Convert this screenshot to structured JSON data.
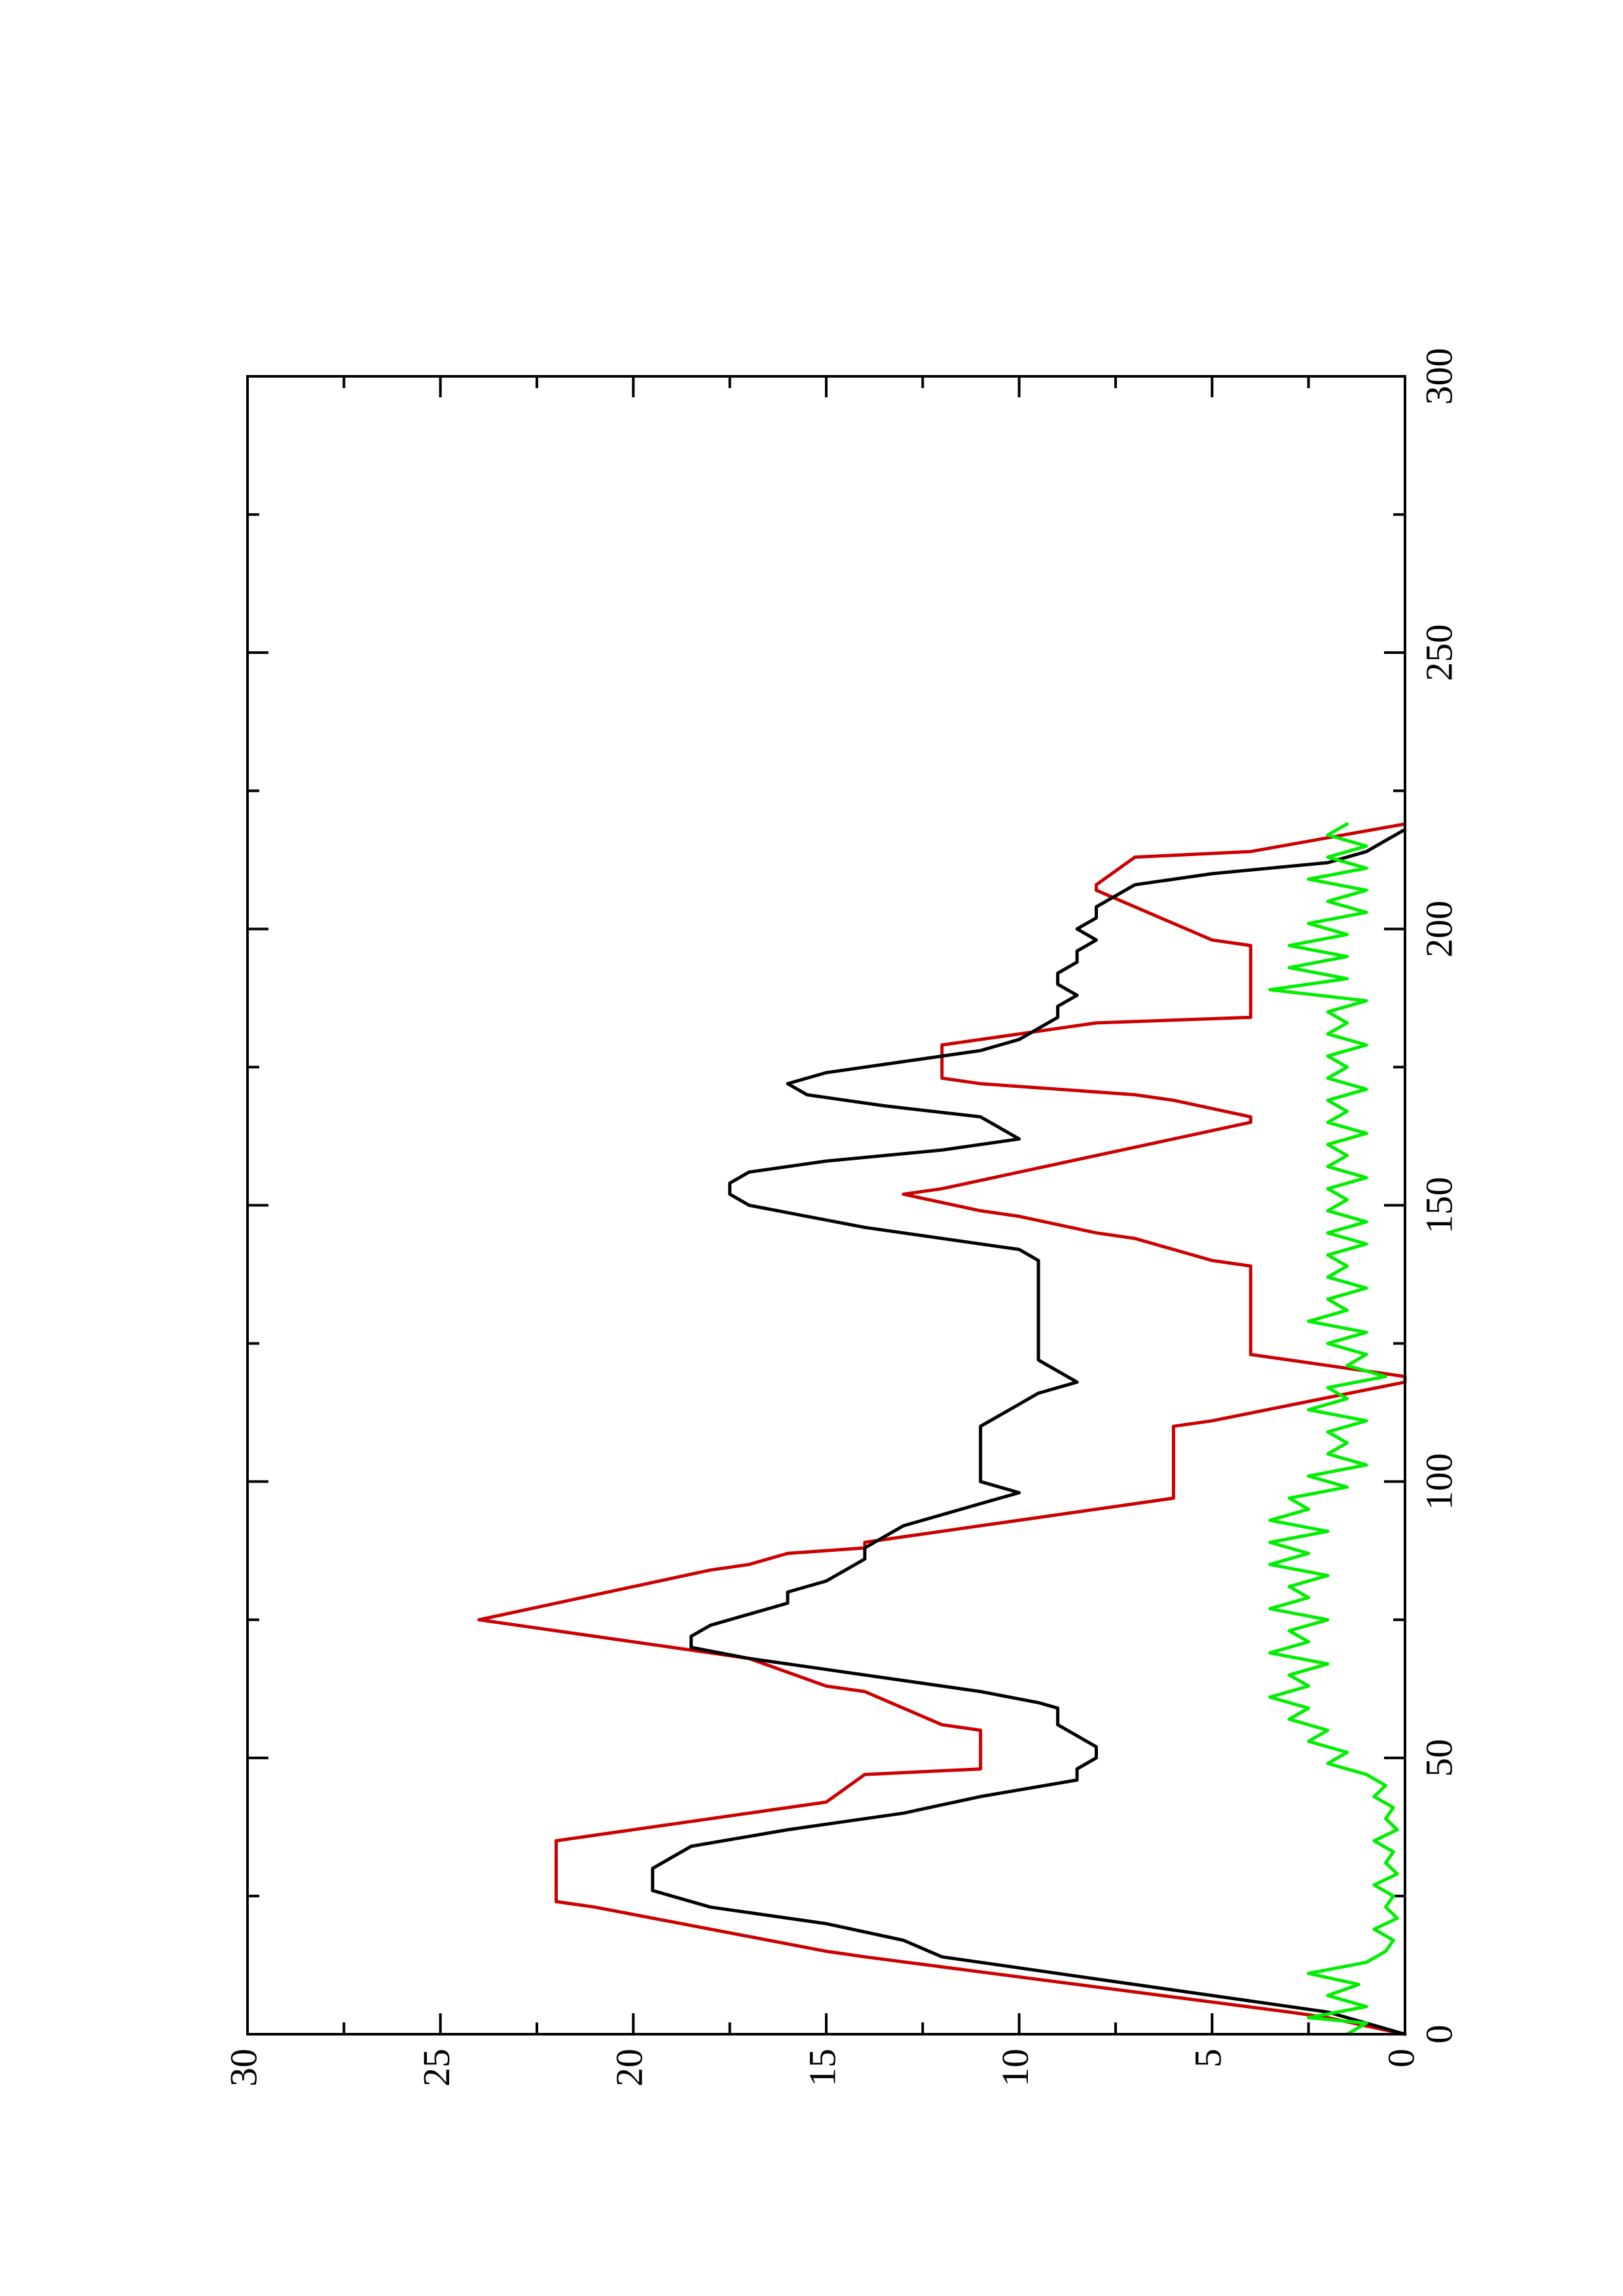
{
  "chart_data": {
    "type": "line",
    "orientation": "rotated 90 degrees counter-clockwise",
    "title": "",
    "xlabel": "",
    "ylabel": "",
    "xlim": [
      0,
      300
    ],
    "ylim": [
      0,
      30
    ],
    "x_ticks": [
      0,
      50,
      100,
      150,
      200,
      250,
      300
    ],
    "x_tick_labels": [
      "0",
      "50",
      "100",
      "150",
      "200",
      "250",
      "300"
    ],
    "y_ticks": [
      0,
      5,
      10,
      15,
      20,
      25,
      30
    ],
    "y_tick_labels": [
      "0",
      "5",
      "10",
      "15",
      "20",
      "25",
      "30"
    ],
    "x_minor_ticks": [
      25,
      75,
      125,
      175,
      225,
      275
    ],
    "y_minor_ticks": [
      2.5,
      7.5,
      12.5,
      17.5,
      22.5,
      27.5
    ],
    "grid": false,
    "legend": "none",
    "series": [
      {
        "color": "#cc0000",
        "x": [
          0,
          3,
          4,
          14,
          15,
          23,
          24,
          35,
          36,
          42,
          47,
          48,
          55,
          56,
          62,
          63,
          68,
          69,
          74,
          75,
          84,
          85,
          87,
          88,
          89,
          97,
          98,
          110,
          111,
          118,
          119,
          122,
          123,
          139,
          140,
          144,
          145,
          148,
          149,
          152,
          153,
          165,
          166,
          169,
          170,
          172,
          173,
          179,
          180,
          183,
          184,
          197,
          198,
          207,
          208,
          213,
          214,
          219
        ],
        "y": [
          0,
          2,
          3,
          14,
          15,
          21,
          22,
          22,
          21,
          15,
          14,
          11,
          11,
          12,
          14,
          15,
          17,
          18,
          23,
          24,
          18,
          17,
          16,
          14,
          14,
          6,
          6,
          6,
          5,
          0,
          0,
          3,
          4,
          4,
          5,
          7,
          8,
          10,
          11,
          13,
          12,
          4,
          4,
          6,
          7,
          11,
          12,
          12,
          11,
          8,
          4,
          4,
          5,
          8,
          8,
          7,
          4,
          0
        ]
      },
      {
        "color": "#000000",
        "x": [
          0,
          2,
          4,
          6,
          8,
          10,
          12,
          14,
          17,
          20,
          23,
          26,
          30,
          34,
          37,
          40,
          43,
          46,
          47,
          48,
          50,
          52,
          54,
          56,
          58,
          59,
          60,
          62,
          64,
          66,
          68,
          70,
          72,
          74,
          76,
          78,
          80,
          82,
          84,
          86,
          88,
          90,
          92,
          94,
          96,
          98,
          100,
          102,
          104,
          106,
          108,
          110,
          112,
          114,
          116,
          118,
          120,
          122,
          124,
          126,
          128,
          130,
          132,
          134,
          136,
          138,
          140,
          142,
          144,
          146,
          148,
          150,
          152,
          154,
          156,
          158,
          160,
          162,
          164,
          166,
          168,
          170,
          172,
          174,
          176,
          178,
          180,
          182,
          184,
          186,
          188,
          190,
          192,
          194,
          196,
          198,
          200,
          202,
          204,
          206,
          208,
          210,
          212,
          214,
          216,
          218
        ],
        "y": [
          0,
          1,
          2,
          4,
          6,
          8,
          10,
          12,
          13,
          15,
          18,
          19.5,
          19.5,
          18.5,
          16,
          13,
          11,
          8.5,
          8.5,
          8.5,
          8,
          8,
          8.5,
          9,
          9,
          9,
          9.5,
          11,
          13,
          15,
          17,
          18.5,
          18.5,
          18,
          17,
          16,
          16,
          15,
          14.5,
          14,
          14,
          13.5,
          13,
          12,
          11,
          10,
          11,
          11,
          11,
          11,
          11,
          11,
          10.5,
          10,
          9.5,
          8.5,
          9,
          9.5,
          9.5,
          9.5,
          9.5,
          9.5,
          9.5,
          9.5,
          9.5,
          9.5,
          9.5,
          10,
          12,
          14,
          15.5,
          17,
          17.5,
          17.5,
          17,
          15,
          12,
          10,
          10.5,
          11,
          13.5,
          15.5,
          16,
          15,
          13,
          11,
          10,
          9.5,
          9,
          9,
          8.5,
          9,
          9,
          8.5,
          8.5,
          8,
          8.5,
          8,
          8,
          7.5,
          7,
          5,
          2,
          1,
          0.5,
          0
        ]
      },
      {
        "color": "#00ee00",
        "x": [
          0,
          2,
          3,
          5,
          7,
          9,
          11,
          13,
          15,
          17,
          19,
          21,
          23,
          25,
          27,
          29,
          31,
          33,
          35,
          37,
          39,
          41,
          43,
          45,
          47,
          49,
          51,
          53,
          55,
          57,
          59,
          61,
          63,
          65,
          67,
          69,
          71,
          73,
          75,
          77,
          79,
          81,
          83,
          85,
          87,
          89,
          91,
          93,
          95,
          97,
          99,
          101,
          103,
          105,
          107,
          109,
          111,
          113,
          115,
          117,
          119,
          121,
          123,
          125,
          127,
          129,
          131,
          133,
          135,
          137,
          139,
          141,
          143,
          145,
          147,
          149,
          151,
          153,
          155,
          157,
          159,
          161,
          163,
          165,
          167,
          169,
          171,
          173,
          175,
          177,
          179,
          181,
          183,
          185,
          187,
          189,
          191,
          193,
          195,
          197,
          199,
          201,
          203,
          205,
          207,
          209,
          211,
          213,
          215,
          217,
          219
        ],
        "y": [
          1.5,
          1.0,
          2.5,
          1.0,
          2.0,
          1.2,
          2.5,
          1.0,
          0.5,
          0.3,
          0.8,
          0.2,
          0.5,
          0.3,
          0.8,
          0.2,
          0.5,
          0.3,
          0.8,
          0.2,
          0.5,
          0.3,
          0.8,
          0.5,
          1.0,
          2.0,
          1.5,
          2.5,
          2.0,
          3.0,
          2.5,
          3.5,
          2.5,
          3.0,
          2.0,
          3.5,
          2.5,
          3.0,
          2.0,
          3.5,
          2.5,
          3.0,
          2.0,
          3.5,
          2.5,
          3.5,
          2.0,
          3.5,
          2.5,
          3.0,
          1.5,
          2.5,
          1.0,
          2.0,
          1.5,
          2.0,
          1.0,
          2.5,
          1.5,
          2.0,
          0.5,
          1.5,
          1.0,
          2.0,
          1.0,
          2.5,
          1.5,
          2.0,
          1.0,
          2.0,
          1.5,
          2.0,
          1.0,
          2.0,
          1.0,
          2.0,
          1.5,
          2.0,
          1.0,
          2.0,
          1.5,
          2.0,
          1.0,
          2.0,
          1.5,
          2.0,
          1.0,
          2.0,
          1.5,
          2.0,
          1.0,
          2.0,
          1.5,
          2.0,
          1.0,
          3.5,
          1.5,
          3.0,
          1.5,
          3.0,
          1.5,
          2.5,
          1.0,
          2.0,
          1.0,
          2.5,
          1.0,
          2.0,
          1.0,
          2.0,
          1.5
        ]
      }
    ]
  }
}
